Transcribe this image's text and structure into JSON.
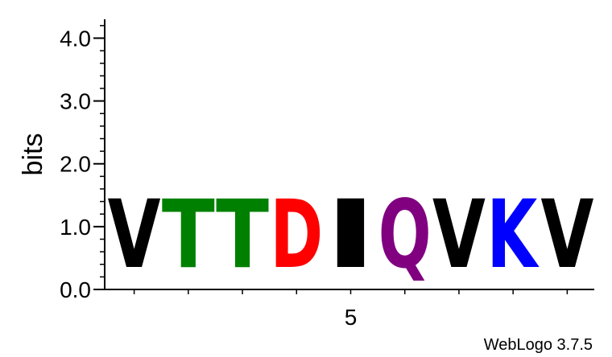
{
  "chart_data": {
    "type": "sequence-logo",
    "ylabel": "bits",
    "ylim": [
      0,
      4.3
    ],
    "y_ticks": [
      {
        "value": 0,
        "label": "0.0"
      },
      {
        "value": 1,
        "label": "1.0"
      },
      {
        "value": 2,
        "label": "2.0"
      },
      {
        "value": 3,
        "label": "3.0"
      },
      {
        "value": 4,
        "label": "4.0"
      }
    ],
    "x_ticks": [
      {
        "position": 5,
        "label": "5"
      }
    ],
    "positions": [
      {
        "position": 1,
        "letter": "V",
        "bits": 1.75,
        "color": "#000000"
      },
      {
        "position": 2,
        "letter": "T",
        "bits": 1.75,
        "color": "#008000"
      },
      {
        "position": 3,
        "letter": "T",
        "bits": 1.75,
        "color": "#008000"
      },
      {
        "position": 4,
        "letter": "D",
        "bits": 1.75,
        "color": "#ff0000"
      },
      {
        "position": 5,
        "letter": "I",
        "bits": 1.75,
        "color": "#000000"
      },
      {
        "position": 6,
        "letter": "Q",
        "bits": 1.75,
        "color": "#800080"
      },
      {
        "position": 7,
        "letter": "V",
        "bits": 1.75,
        "color": "#000000"
      },
      {
        "position": 8,
        "letter": "K",
        "bits": 1.75,
        "color": "#0000ff"
      },
      {
        "position": 9,
        "letter": "V",
        "bits": 1.75,
        "color": "#000000"
      }
    ],
    "credit": "WebLogo 3.7.5"
  }
}
